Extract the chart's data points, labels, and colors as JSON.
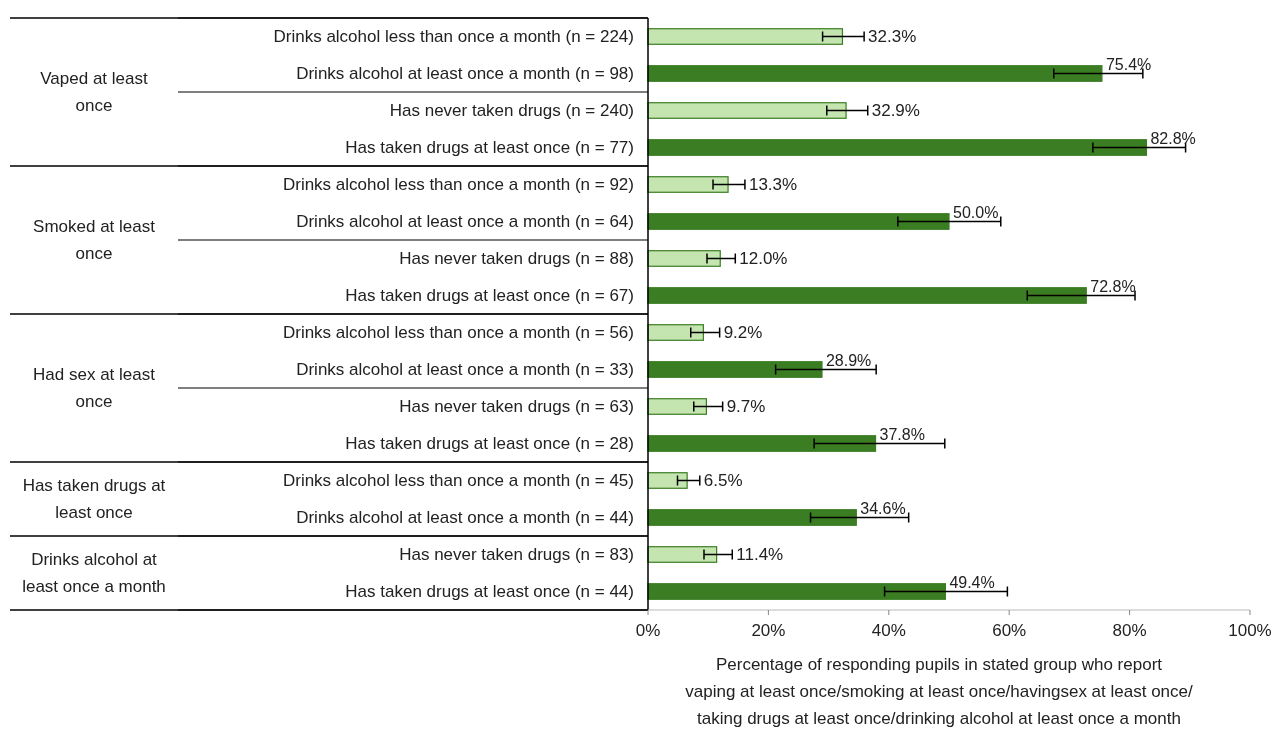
{
  "chart_data": {
    "type": "bar",
    "orientation": "horizontal",
    "categories": [
      "Drinks alcohol less than once a month (n = 224)",
      "Drinks alcohol at least once a month (n = 98)",
      "Has never taken drugs (n = 240)",
      "Has taken drugs at least once (n = 77)",
      "Drinks alcohol less than once a month (n = 92)",
      "Drinks alcohol at least once a month (n = 64)",
      "Has never taken drugs (n = 88)",
      "Has taken drugs at least once (n = 67)",
      "Drinks alcohol less than once a month (n = 56)",
      "Drinks alcohol at least once a month (n = 33)",
      "Has never taken drugs (n = 63)",
      "Has taken drugs at least once (n = 28)",
      "Drinks alcohol less than once a month (n = 45)",
      "Drinks alcohol at least once a month (n = 44)",
      "Has never taken drugs (n = 83)",
      "Has taken drugs at least once (n = 44)"
    ],
    "values": [
      32.3,
      75.4,
      32.9,
      82.8,
      13.3,
      50.0,
      12.0,
      72.8,
      9.2,
      28.9,
      9.7,
      37.8,
      6.5,
      34.6,
      11.4,
      49.4
    ],
    "value_labels": [
      "32.3%",
      "75.4%",
      "32.9%",
      "82.8%",
      "13.3%",
      "50.0%",
      "12.0%",
      "72.8%",
      "9.2%",
      "28.9%",
      "9.7%",
      "37.8%",
      "6.5%",
      "34.6%",
      "11.4%",
      "49.4%"
    ],
    "errors": [
      [
        29.0,
        35.9
      ],
      [
        67.4,
        82.2
      ],
      [
        29.7,
        36.5
      ],
      [
        73.9,
        89.3
      ],
      [
        10.8,
        16.1
      ],
      [
        41.5,
        58.6
      ],
      [
        9.8,
        14.5
      ],
      [
        63.0,
        80.9
      ],
      [
        7.1,
        11.9
      ],
      [
        21.2,
        37.9
      ],
      [
        7.6,
        12.4
      ],
      [
        27.6,
        49.3
      ],
      [
        4.9,
        8.6
      ],
      [
        27.0,
        43.3
      ],
      [
        9.3,
        14.0
      ],
      [
        39.3,
        59.7
      ]
    ],
    "colors": [
      "#c5e5b0",
      "#3a7d22",
      "#c5e5b0",
      "#3a7d22",
      "#c5e5b0",
      "#3a7d22",
      "#c5e5b0",
      "#3a7d22",
      "#c5e5b0",
      "#3a7d22",
      "#c5e5b0",
      "#3a7d22",
      "#c5e5b0",
      "#3a7d22",
      "#c5e5b0",
      "#3a7d22"
    ],
    "xlim": [
      0,
      100
    ],
    "xticks": [
      {
        "value": 0,
        "label": "0%"
      },
      {
        "value": 20,
        "label": "20%"
      },
      {
        "value": 40,
        "label": "40%"
      },
      {
        "value": 60,
        "label": "60%"
      },
      {
        "value": 80,
        "label": "80%"
      },
      {
        "value": 100,
        "label": "100%"
      }
    ],
    "xlabel": "Percentage of responding pupils in stated group who report\nvaping at least once/smoking at least once/havingsex at least once/\ntaking drugs at least once/drinking alcohol at least once a month",
    "annotations": [
      "Vaped at least\nonce",
      "Smoked at least\nonce",
      "Had sex at least\nonce",
      "Has taken drugs at\nleast once",
      "Drinks alcohol at\nleast once a month"
    ]
  }
}
